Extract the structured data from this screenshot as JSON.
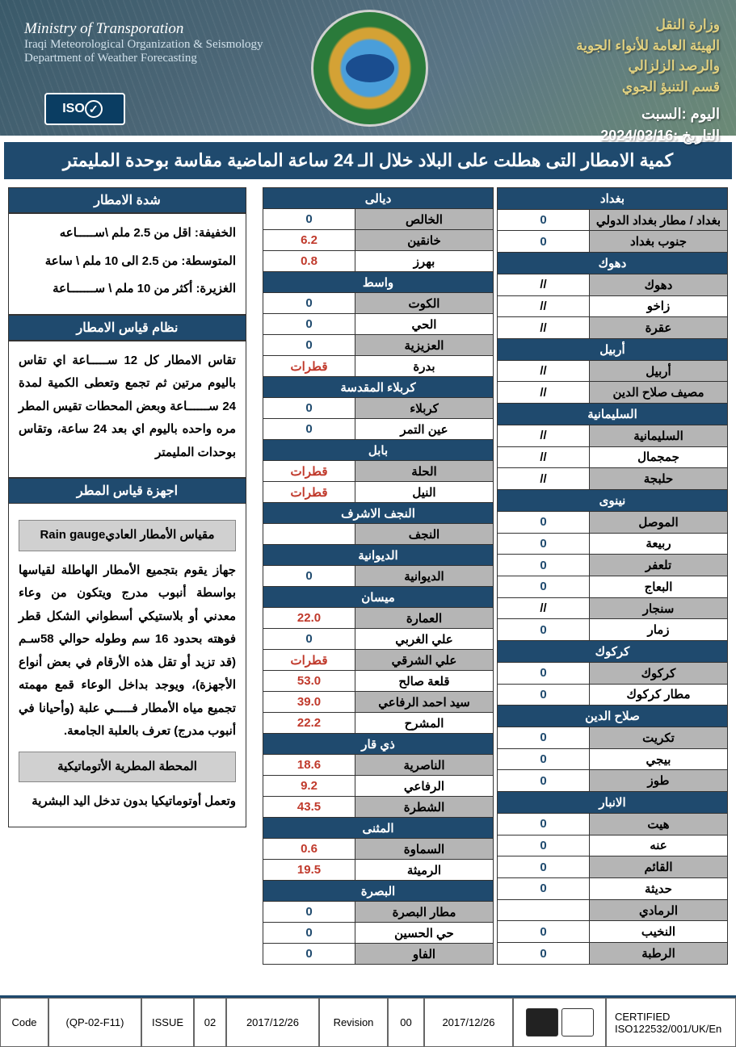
{
  "header": {
    "ministry_en": "Ministry of Transporation",
    "org_en": "Iraqi Meteorological Organization & Seismology",
    "dept_en": "Department of Weather Forecasting",
    "iso_text": "ISO",
    "ministry_ar": "وزارة النقل",
    "org_ar1": "الهيئة العامة للأنواء الجوية",
    "org_ar2": "والرصد الزلزالي",
    "dept_ar": "قسم التنبؤ الجوي",
    "day_label": "اليوم :",
    "day_value": "السبت",
    "date_label": "التاريخ :",
    "date_value": "2024/03/16"
  },
  "title": "كمية الامطار التى هطلت على البلاد خلال الـ 24 ساعة الماضية مقاسة بوحدة المليمتر",
  "table_right": [
    {
      "type": "header",
      "label": "بغداد"
    },
    {
      "type": "row",
      "station": "بغداد / مطار بغداد الدولي",
      "value": "0",
      "cls": "value-blue",
      "bg": "g"
    },
    {
      "type": "row",
      "station": "جنوب بغداد",
      "value": "0",
      "cls": "value-blue",
      "bg": "g"
    },
    {
      "type": "header",
      "label": "دهوك"
    },
    {
      "type": "row",
      "station": "دهوك",
      "value": "//",
      "cls": "",
      "bg": "g"
    },
    {
      "type": "row",
      "station": "زاخو",
      "value": "//",
      "cls": "",
      "bg": "w"
    },
    {
      "type": "row",
      "station": "عقرة",
      "value": "//",
      "cls": "",
      "bg": "g"
    },
    {
      "type": "header",
      "label": "أربيل"
    },
    {
      "type": "row",
      "station": "أربيل",
      "value": "//",
      "cls": "",
      "bg": "g"
    },
    {
      "type": "row",
      "station": "مصيف صلاح الدين",
      "value": "//",
      "cls": "",
      "bg": "g"
    },
    {
      "type": "header",
      "label": "السليمانية"
    },
    {
      "type": "row",
      "station": "السليمانية",
      "value": "//",
      "cls": "",
      "bg": "g"
    },
    {
      "type": "row",
      "station": "جمجمال",
      "value": "//",
      "cls": "",
      "bg": "w"
    },
    {
      "type": "row",
      "station": "حلبجة",
      "value": "//",
      "cls": "",
      "bg": "g"
    },
    {
      "type": "header",
      "label": "نينوى"
    },
    {
      "type": "row",
      "station": "الموصل",
      "value": "0",
      "cls": "value-blue",
      "bg": "g"
    },
    {
      "type": "row",
      "station": "ربيعة",
      "value": "0",
      "cls": "value-blue",
      "bg": "w"
    },
    {
      "type": "row",
      "station": "تلعفر",
      "value": "0",
      "cls": "value-blue",
      "bg": "g"
    },
    {
      "type": "row",
      "station": "البعاج",
      "value": "0",
      "cls": "value-blue",
      "bg": "w"
    },
    {
      "type": "row",
      "station": "سنجار",
      "value": "//",
      "cls": "",
      "bg": "g"
    },
    {
      "type": "row",
      "station": "زمار",
      "value": "0",
      "cls": "value-blue",
      "bg": "w"
    },
    {
      "type": "header",
      "label": "كركوك"
    },
    {
      "type": "row",
      "station": "كركوك",
      "value": "0",
      "cls": "value-blue",
      "bg": "g"
    },
    {
      "type": "row",
      "station": "مطار كركوك",
      "value": "0",
      "cls": "value-blue",
      "bg": "w"
    },
    {
      "type": "header",
      "label": "صلاح الدين"
    },
    {
      "type": "row",
      "station": "تكريت",
      "value": "0",
      "cls": "value-blue",
      "bg": "g"
    },
    {
      "type": "row",
      "station": "بيجي",
      "value": "0",
      "cls": "value-blue",
      "bg": "w"
    },
    {
      "type": "row",
      "station": "طوز",
      "value": "0",
      "cls": "value-blue",
      "bg": "g"
    },
    {
      "type": "header",
      "label": "الانبار"
    },
    {
      "type": "row",
      "station": "هيت",
      "value": "0",
      "cls": "value-blue",
      "bg": "g"
    },
    {
      "type": "row",
      "station": "عنه",
      "value": "0",
      "cls": "value-blue",
      "bg": "w"
    },
    {
      "type": "row",
      "station": "القائم",
      "value": "0",
      "cls": "value-blue",
      "bg": "g"
    },
    {
      "type": "row",
      "station": "حديثة",
      "value": "0",
      "cls": "value-blue",
      "bg": "w"
    },
    {
      "type": "row",
      "station": "الرمادي",
      "value": "",
      "cls": "",
      "bg": "g"
    },
    {
      "type": "row",
      "station": "النخيب",
      "value": "0",
      "cls": "value-blue",
      "bg": "w"
    },
    {
      "type": "row",
      "station": "الرطبة",
      "value": "0",
      "cls": "value-blue",
      "bg": "g"
    }
  ],
  "table_left": [
    {
      "type": "header",
      "label": "ديالى"
    },
    {
      "type": "row",
      "station": "الخالص",
      "value": "0",
      "cls": "value-blue",
      "bg": "g"
    },
    {
      "type": "row",
      "station": "خانقين",
      "value": "6.2",
      "cls": "value-red",
      "bg": "g"
    },
    {
      "type": "row",
      "station": "بهرز",
      "value": "0.8",
      "cls": "value-red",
      "bg": "w"
    },
    {
      "type": "header",
      "label": "واسط"
    },
    {
      "type": "row",
      "station": "الكوت",
      "value": "0",
      "cls": "value-blue",
      "bg": "g"
    },
    {
      "type": "row",
      "station": "الحي",
      "value": "0",
      "cls": "value-blue",
      "bg": "w"
    },
    {
      "type": "row",
      "station": "العزيزية",
      "value": "0",
      "cls": "value-blue",
      "bg": "g"
    },
    {
      "type": "row",
      "station": "بدرة",
      "value": "قطرات",
      "cls": "value-red",
      "bg": "w"
    },
    {
      "type": "header",
      "label": "كربلاء المقدسة"
    },
    {
      "type": "row",
      "station": "كربلاء",
      "value": "0",
      "cls": "value-blue",
      "bg": "g"
    },
    {
      "type": "row",
      "station": "عين التمر",
      "value": "0",
      "cls": "value-blue",
      "bg": "w"
    },
    {
      "type": "header",
      "label": "بابل"
    },
    {
      "type": "row",
      "station": "الحلة",
      "value": "قطرات",
      "cls": "value-red",
      "bg": "g"
    },
    {
      "type": "row",
      "station": "النيل",
      "value": "قطرات",
      "cls": "value-red",
      "bg": "w"
    },
    {
      "type": "header",
      "label": "النجف الاشرف"
    },
    {
      "type": "row",
      "station": "النجف",
      "value": "",
      "cls": "",
      "bg": "g"
    },
    {
      "type": "header",
      "label": "الديوانية"
    },
    {
      "type": "row",
      "station": "الديوانية",
      "value": "0",
      "cls": "value-blue",
      "bg": "g"
    },
    {
      "type": "header",
      "label": "ميسان"
    },
    {
      "type": "row",
      "station": "العمارة",
      "value": "22.0",
      "cls": "value-red",
      "bg": "g"
    },
    {
      "type": "row",
      "station": "علي الغربي",
      "value": "0",
      "cls": "value-blue",
      "bg": "w"
    },
    {
      "type": "row",
      "station": "علي الشرقي",
      "value": "قطرات",
      "cls": "value-red",
      "bg": "g"
    },
    {
      "type": "row",
      "station": "قلعة صالح",
      "value": "53.0",
      "cls": "value-red",
      "bg": "w"
    },
    {
      "type": "row",
      "station": "سيد احمد الرفاعي",
      "value": "39.0",
      "cls": "value-red",
      "bg": "g"
    },
    {
      "type": "row",
      "station": "المشرح",
      "value": "22.2",
      "cls": "value-red",
      "bg": "w"
    },
    {
      "type": "header",
      "label": "ذي قار"
    },
    {
      "type": "row",
      "station": "الناصرية",
      "value": "18.6",
      "cls": "value-red",
      "bg": "g"
    },
    {
      "type": "row",
      "station": "الرفاعي",
      "value": "9.2",
      "cls": "value-red",
      "bg": "w"
    },
    {
      "type": "row",
      "station": "الشطرة",
      "value": "43.5",
      "cls": "value-red",
      "bg": "g"
    },
    {
      "type": "header",
      "label": "المثنى"
    },
    {
      "type": "row",
      "station": "السماوة",
      "value": "0.6",
      "cls": "value-red",
      "bg": "g"
    },
    {
      "type": "row",
      "station": "الرميثة",
      "value": "19.5",
      "cls": "value-red",
      "bg": "w"
    },
    {
      "type": "header",
      "label": "البصرة"
    },
    {
      "type": "row",
      "station": "مطار البصرة",
      "value": "0",
      "cls": "value-blue",
      "bg": "g"
    },
    {
      "type": "row",
      "station": "حي الحسين",
      "value": "0",
      "cls": "value-blue",
      "bg": "w"
    },
    {
      "type": "row",
      "station": "الفاو",
      "value": "0",
      "cls": "value-blue",
      "bg": "g"
    }
  ],
  "sidebar": {
    "h1": "شدة الامطار",
    "intensity1": "الخفيفة: اقل من 2.5 ملم \\ســـــاعه",
    "intensity2": "المتوسطة: من 2.5 الى 10 ملم \\ ساعة",
    "intensity3": "الغزيرة: أكثر من 10 ملم \\ ســـــــاعة",
    "h2": "نظام قياس الامطار",
    "system": "تقاس الامطار كل 12 ســـــاعة اي تقاس باليوم مرتين ثم تجمع وتعطى الكمية لمدة 24 ســــــاعة وبعض المحطات تقيس المطر مره واحده باليوم اي بعد 24 ساعة، وتقاس بوحدات المليمتر",
    "h3": "اجهزة قياس المطر",
    "sub1": "مقياس الأمطار العاديRain gauge",
    "desc1": "جهاز يقوم بتجميع الأمطار الهاطلة لقياسها بواسطة أنبوب مدرج ويتكون من وعاء معدني أو بلاستيكي أسطواني الشكل قطر فوهته بحدود 16 سم وطوله حوالي 58سـم (قد تزيد أو تقل هذه الأرقام في بعض أنواع الأجهزة)، ويوجد بداخل الوعاء قمع مهمته تجميع مياه الأمطار فـــــي علبة (وأحيانا في أنبوب مدرج) تعرف بالعلبة الجامعة.",
    "sub2": "المحطة المطرية الأتوماتيكية",
    "desc2": "وتعمل أوتوماتيكيا بدون تدخل اليد البشرية"
  },
  "footer": {
    "code_lbl": "Code",
    "code_val": "(QP-02-F11)",
    "issue_lbl": "ISSUE",
    "issue_val": "02",
    "date1": "2017/12/26",
    "rev_lbl": "Revision",
    "rev_val": "00",
    "date2": "2017/12/26",
    "cert": "CERTIFIED\nISO122532/001/UK/En"
  }
}
